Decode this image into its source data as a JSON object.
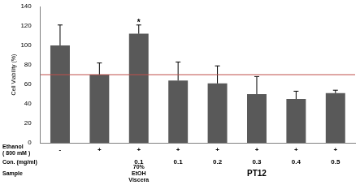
{
  "chart_data": {
    "type": "bar",
    "y_label": "Cell Viability (%)",
    "values": [
      100,
      70,
      112,
      64,
      61,
      50,
      45,
      51
    ],
    "errors": [
      21,
      12,
      9,
      19,
      18,
      18,
      8,
      3
    ],
    "color": "#595959",
    "ylim": [
      0,
      140
    ],
    "yticks": [
      0,
      20,
      40,
      60,
      80,
      100,
      120,
      140
    ],
    "grid": false,
    "reference_line": {
      "value": 70,
      "color": "#c0504d"
    },
    "annotations": [
      {
        "text": "*",
        "index": 2
      }
    ],
    "x_rows": [
      {
        "label": [
          "Ethanol",
          "( 800 mM )"
        ],
        "values": [
          "-",
          "+",
          "+",
          "+",
          "+",
          "+",
          "+",
          "+"
        ]
      },
      {
        "label": [
          "Con. (mg/ml)"
        ],
        "values": [
          null,
          null,
          0.1,
          0.1,
          0.2,
          0.3,
          0.4,
          0.5
        ]
      },
      {
        "label": [
          "Sample"
        ],
        "groups": [
          {
            "text": [
              "70%",
              "EtOH",
              "Viscera"
            ],
            "from": 2,
            "to": 2
          },
          {
            "text": [
              "PT12"
            ],
            "from": 3,
            "to": 7
          }
        ]
      }
    ]
  }
}
